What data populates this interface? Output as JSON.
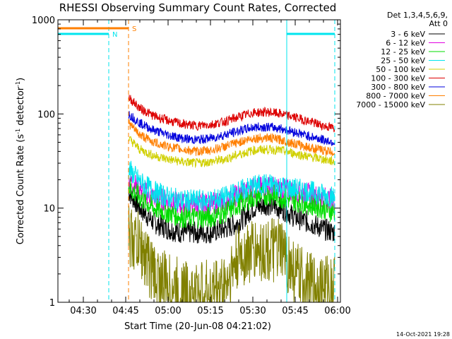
{
  "chart_data": {
    "type": "line",
    "title": "RHESSI Observing Summary Count Rates, Corrected",
    "xlabel": "Start Time (20-Jun-08 04:21:02)",
    "ylabel_main": "Corrected Count Rate (s",
    "ylabel_sup1": "-1",
    "ylabel_mid": " detector",
    "ylabel_sup2": "-1",
    "ylabel_end": ")",
    "yscale": "log",
    "ylim": [
      1,
      1000
    ],
    "xlim": [
      "04:21",
      "06:01"
    ],
    "xtick_labels": [
      "04:30",
      "04:45",
      "05:00",
      "05:15",
      "05:30",
      "05:45",
      "06:00"
    ],
    "ytick_labels": [
      "1",
      "10",
      "100",
      "1000"
    ],
    "legend_header": "Det 1,3,4,5,6,9,",
    "legend_att": "Att 0",
    "timestamp": "14-Oct-2021 19:28",
    "markers": {
      "N_label": "N",
      "S_label": "S",
      "night_color": "#00e5ee",
      "saa_color": "#ff7f00",
      "night": [
        [
          "04:21",
          "04:39"
        ],
        [
          "05:42",
          "05:59"
        ]
      ],
      "saa": [
        [
          "04:21",
          "04:46"
        ]
      ]
    },
    "series": [
      {
        "name": "3 - 6 keV",
        "color": "#000000",
        "x": [
          "04:46",
          "04:50",
          "04:55",
          "05:00",
          "05:05",
          "05:10",
          "05:15",
          "05:20",
          "05:25",
          "05:30",
          "05:35",
          "05:40",
          "05:45",
          "05:50",
          "05:55",
          "05:59"
        ],
        "values": [
          15,
          10,
          7,
          6,
          5.5,
          5.5,
          5.5,
          6,
          7,
          10,
          11,
          10,
          8,
          7,
          6,
          5.5
        ]
      },
      {
        "name": "6 - 12 keV",
        "color": "#e000e0",
        "x": [
          "04:46",
          "04:50",
          "04:55",
          "05:00",
          "05:05",
          "05:10",
          "05:15",
          "05:20",
          "05:25",
          "05:30",
          "05:35",
          "05:40",
          "05:45",
          "05:50",
          "05:55",
          "05:59"
        ],
        "values": [
          20,
          16,
          13,
          12,
          11,
          11,
          11,
          12,
          14,
          16,
          17,
          16,
          15,
          14,
          13,
          12
        ]
      },
      {
        "name": "12 - 25 keV",
        "color": "#00dd00",
        "x": [
          "04:46",
          "04:50",
          "04:55",
          "05:00",
          "05:05",
          "05:10",
          "05:15",
          "05:20",
          "05:25",
          "05:30",
          "05:35",
          "05:40",
          "05:45",
          "05:50",
          "05:55",
          "05:59"
        ],
        "values": [
          17,
          13,
          10,
          9,
          8,
          8,
          8,
          9,
          11,
          13,
          14,
          13,
          12,
          11,
          10,
          9
        ]
      },
      {
        "name": "25 - 50 keV",
        "color": "#00e5ee",
        "x": [
          "04:46",
          "04:50",
          "04:55",
          "05:00",
          "05:05",
          "05:10",
          "05:15",
          "05:20",
          "05:25",
          "05:30",
          "05:35",
          "05:40",
          "05:45",
          "05:50",
          "05:55",
          "05:59"
        ],
        "values": [
          26,
          19,
          15,
          13,
          12,
          12,
          12,
          13,
          15,
          17,
          18,
          17,
          16,
          15,
          14,
          13
        ]
      },
      {
        "name": "50 - 100 keV",
        "color": "#d0d000",
        "x": [
          "04:46",
          "04:50",
          "04:55",
          "05:00",
          "05:05",
          "05:10",
          "05:15",
          "05:20",
          "05:25",
          "05:30",
          "05:35",
          "05:40",
          "05:45",
          "05:50",
          "05:55",
          "05:59"
        ],
        "values": [
          55,
          42,
          36,
          33,
          31,
          30,
          31,
          33,
          37,
          41,
          42,
          41,
          38,
          35,
          33,
          31
        ]
      },
      {
        "name": "100 - 300 keV",
        "color": "#dd0000",
        "x": [
          "04:46",
          "04:50",
          "04:55",
          "05:00",
          "05:05",
          "05:10",
          "05:15",
          "05:20",
          "05:25",
          "05:30",
          "05:35",
          "05:40",
          "05:45",
          "05:50",
          "05:55",
          "05:59"
        ],
        "values": [
          150,
          115,
          95,
          85,
          78,
          75,
          77,
          83,
          93,
          103,
          105,
          100,
          92,
          83,
          75,
          70
        ]
      },
      {
        "name": "300 - 800 keV",
        "color": "#0000dd",
        "x": [
          "04:46",
          "04:50",
          "04:55",
          "05:00",
          "05:05",
          "05:10",
          "05:15",
          "05:20",
          "05:25",
          "05:30",
          "05:35",
          "05:40",
          "05:45",
          "05:50",
          "05:55",
          "05:59"
        ],
        "values": [
          100,
          80,
          67,
          60,
          55,
          53,
          55,
          60,
          66,
          72,
          73,
          70,
          64,
          58,
          53,
          50
        ]
      },
      {
        "name": "800 - 7000 keV",
        "color": "#ff7f00",
        "x": [
          "04:46",
          "04:50",
          "04:55",
          "05:00",
          "05:05",
          "05:10",
          "05:15",
          "05:20",
          "05:25",
          "05:30",
          "05:35",
          "05:40",
          "05:45",
          "05:50",
          "05:55",
          "05:59"
        ],
        "values": [
          80,
          60,
          50,
          45,
          42,
          40,
          41,
          45,
          50,
          55,
          56,
          53,
          48,
          44,
          41,
          39
        ]
      },
      {
        "name": "7000 - 15000 keV",
        "color": "#808000",
        "x": [
          "04:46",
          "04:50",
          "04:55",
          "05:00",
          "05:05",
          "05:10",
          "05:15",
          "05:20",
          "05:25",
          "05:30",
          "05:35",
          "05:40",
          "05:45",
          "05:50",
          "05:55",
          "05:59"
        ],
        "values": [
          5,
          4,
          2,
          1.5,
          1.3,
          1.2,
          1.3,
          1.5,
          3,
          3.5,
          3.5,
          3.5,
          2,
          1.5,
          1.5,
          1.5
        ]
      }
    ]
  }
}
